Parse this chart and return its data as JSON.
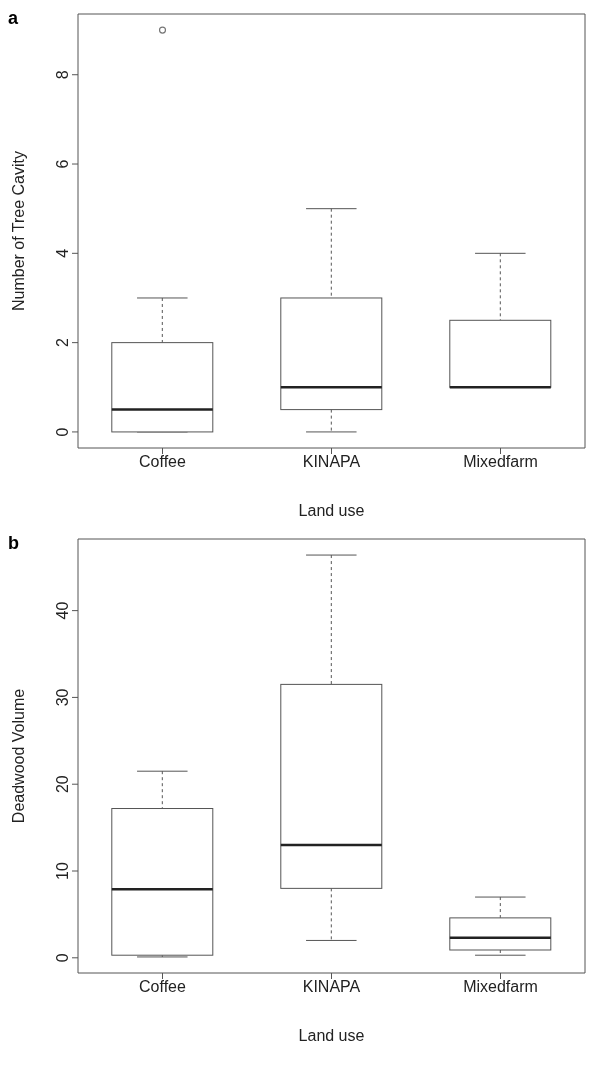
{
  "chart_data": [
    {
      "type": "box",
      "title": "a",
      "xlabel": "Land use",
      "ylabel": "Number of Tree Cavity",
      "categories": [
        "Coffee",
        "KINAPA",
        "Mixedfarm"
      ],
      "ylim": [
        -0.36,
        9.36
      ],
      "yticks": [
        0,
        2,
        4,
        6,
        8
      ],
      "boxes": [
        {
          "low": 0,
          "q1": 0,
          "median": 0.5,
          "q3": 2,
          "high": 3,
          "outliers": [
            9
          ]
        },
        {
          "low": 0,
          "q1": 0.5,
          "median": 1,
          "q3": 3,
          "high": 5
        },
        {
          "low": 1,
          "q1": 1,
          "median": 1,
          "q3": 2.5,
          "high": 4
        }
      ]
    },
    {
      "type": "box",
      "title": "b",
      "xlabel": "Land use",
      "ylabel": "Deadwood Volume",
      "categories": [
        "Coffee",
        "KINAPA",
        "Mixedfarm"
      ],
      "ylim": [
        -1.75,
        48.25
      ],
      "yticks": [
        0,
        10,
        20,
        30,
        40
      ],
      "boxes": [
        {
          "low": 0.1,
          "q1": 0.3,
          "median": 7.9,
          "q3": 17.2,
          "high": 21.5
        },
        {
          "low": 2,
          "q1": 8,
          "median": 13,
          "q3": 31.5,
          "high": 46.4
        },
        {
          "low": 0.3,
          "q1": 0.9,
          "median": 2.3,
          "q3": 4.6,
          "high": 7
        }
      ]
    }
  ]
}
